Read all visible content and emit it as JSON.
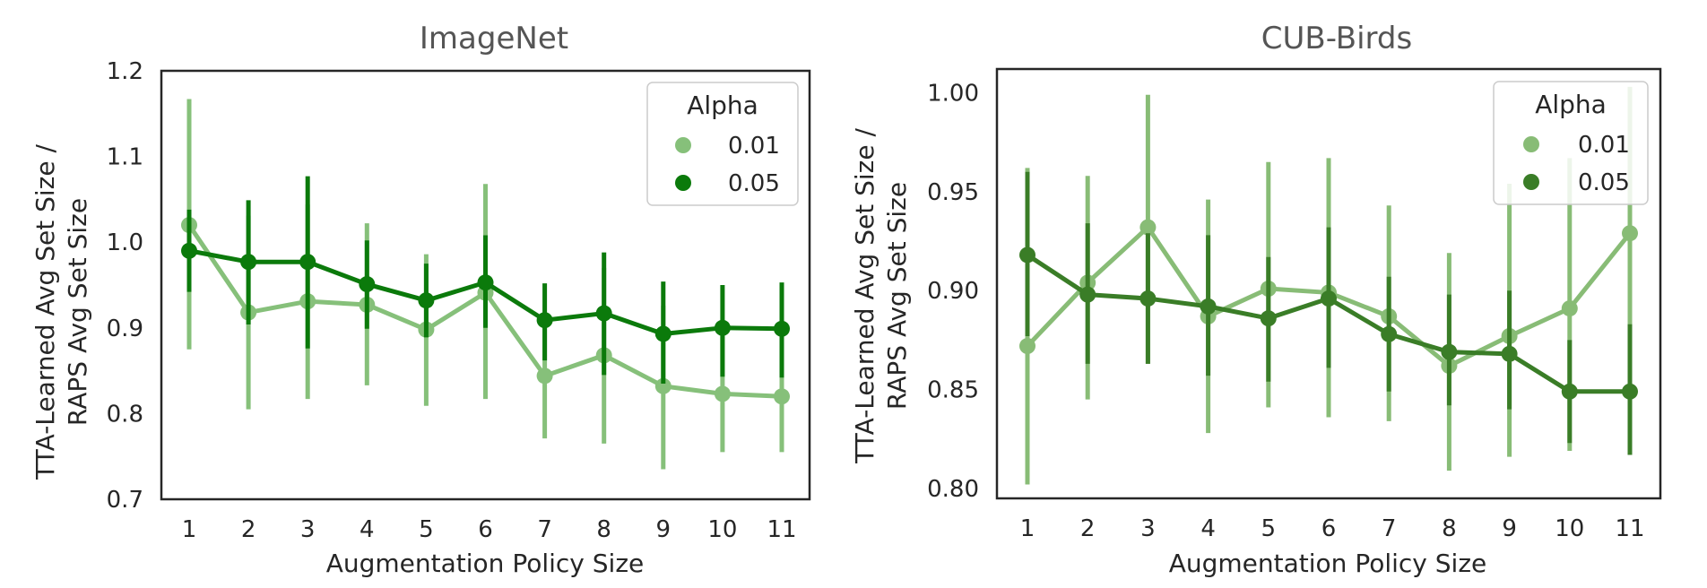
{
  "chart_data": [
    {
      "type": "line",
      "title": "ImageNet",
      "xlabel": "Augmentation Policy Size",
      "ylabel_lines": [
        "TTA-Learned Avg Set Size /",
        "RAPS Avg Set Size"
      ],
      "categories": [
        "1",
        "2",
        "3",
        "4",
        "5",
        "6",
        "7",
        "8",
        "9",
        "10",
        "11"
      ],
      "ylim": [
        0.7,
        1.2
      ],
      "yticks": [
        "0.7",
        "0.8",
        "0.9",
        "1.0",
        "1.1",
        "1.2"
      ],
      "legend": {
        "title": "Alpha",
        "position": "top-right"
      },
      "series": [
        {
          "name": "0.01",
          "color": "#86c07a",
          "values": [
            1.02,
            0.918,
            0.931,
            0.927,
            0.898,
            0.941,
            0.844,
            0.868,
            0.832,
            0.823,
            0.82
          ],
          "err_low": [
            0.875,
            0.805,
            0.817,
            0.833,
            0.809,
            0.817,
            0.771,
            0.765,
            0.735,
            0.755,
            0.755
          ],
          "err_high": [
            1.167,
            1.031,
            1.044,
            1.022,
            0.986,
            1.068,
            0.916,
            0.97,
            0.926,
            0.89,
            0.882
          ]
        },
        {
          "name": "0.05",
          "color": "#0b7a0b",
          "values": [
            0.99,
            0.977,
            0.977,
            0.951,
            0.932,
            0.953,
            0.909,
            0.917,
            0.893,
            0.9,
            0.899
          ],
          "err_low": [
            0.942,
            0.904,
            0.876,
            0.899,
            0.889,
            0.9,
            0.862,
            0.845,
            0.835,
            0.843,
            0.842
          ],
          "err_high": [
            1.038,
            1.049,
            1.077,
            1.002,
            0.975,
            1.008,
            0.952,
            0.988,
            0.954,
            0.95,
            0.953
          ]
        }
      ]
    },
    {
      "type": "line",
      "title": "CUB-Birds",
      "xlabel": "Augmentation Policy Size",
      "ylabel_lines": [
        "TTA-Learned Avg Set Size /",
        "RAPS Avg Set Size"
      ],
      "categories": [
        "1",
        "2",
        "3",
        "4",
        "5",
        "6",
        "7",
        "8",
        "9",
        "10",
        "11"
      ],
      "ylim": [
        0.795,
        1.012
      ],
      "yticks": [
        "0.80",
        "0.85",
        "0.90",
        "0.95",
        "1.00"
      ],
      "legend": {
        "title": "Alpha",
        "position": "top-right"
      },
      "series": [
        {
          "name": "0.01",
          "color": "#88bc76",
          "values": [
            0.872,
            0.904,
            0.932,
            0.887,
            0.901,
            0.899,
            0.887,
            0.862,
            0.877,
            0.891,
            0.929
          ],
          "err_low": [
            0.802,
            0.845,
            0.863,
            0.828,
            0.841,
            0.836,
            0.834,
            0.809,
            0.816,
            0.819,
            0.855
          ],
          "err_high": [
            0.962,
            0.958,
            0.999,
            0.946,
            0.965,
            0.967,
            0.943,
            0.919,
            0.954,
            0.967,
            1.003
          ]
        },
        {
          "name": "0.05",
          "color": "#3a7d27",
          "values": [
            0.918,
            0.898,
            0.896,
            0.892,
            0.886,
            0.896,
            0.878,
            0.869,
            0.868,
            0.849,
            0.849
          ],
          "err_low": [
            0.877,
            0.863,
            0.863,
            0.857,
            0.854,
            0.861,
            0.849,
            0.842,
            0.84,
            0.823,
            0.817
          ],
          "err_high": [
            0.96,
            0.934,
            0.929,
            0.928,
            0.917,
            0.932,
            0.907,
            0.898,
            0.9,
            0.875,
            0.883
          ]
        }
      ]
    }
  ]
}
